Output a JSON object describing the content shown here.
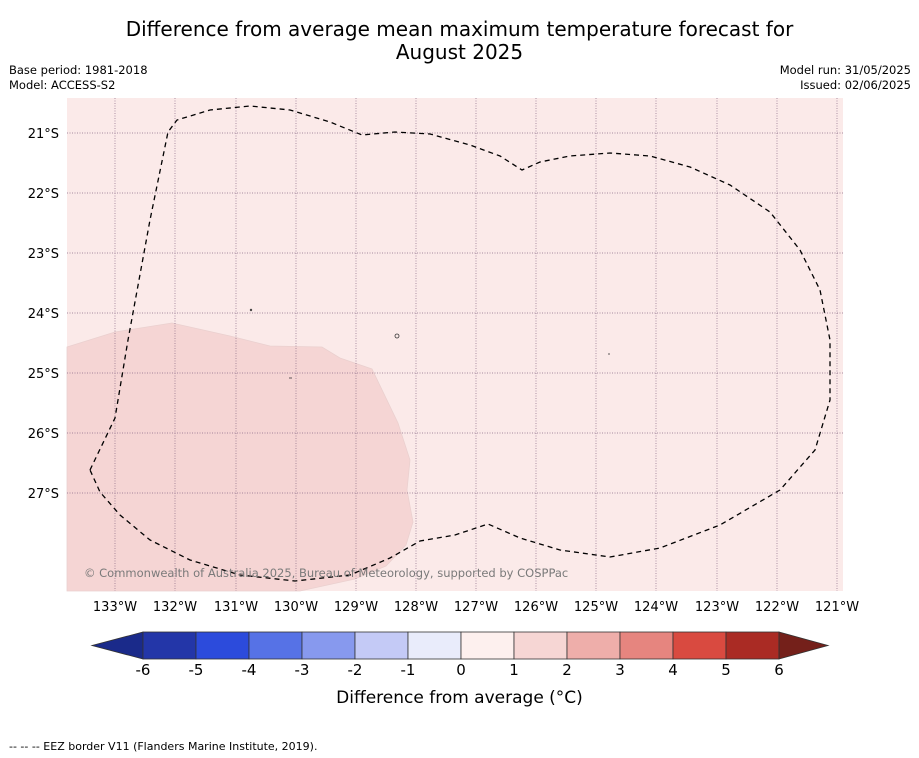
{
  "title": {
    "line1": "Difference from average mean maximum temperature forecast for",
    "line2": "August 2025"
  },
  "header": {
    "base_period": "Base period: 1981-2018",
    "model": "Model: ACCESS-S2",
    "model_run": "Model run: 31/05/2025",
    "issued": "Issued: 02/06/2025"
  },
  "map": {
    "lat_labels": [
      "21°S",
      "22°S",
      "23°S",
      "24°S",
      "25°S",
      "26°S",
      "27°S"
    ],
    "lon_labels": [
      "133°W",
      "132°W",
      "131°W",
      "130°W",
      "129°W",
      "128°W",
      "127°W",
      "126°W",
      "125°W",
      "124°W",
      "123°W",
      "122°W",
      "121°W"
    ],
    "copyright": "© Commonwealth of Australia 2025, Bureau of Meteorology, supported by COSPPac",
    "colors": {
      "background_anomaly": "#fbeae9",
      "warm_patch": "#f5d5d4",
      "eez_border": "#000000"
    }
  },
  "colorbar": {
    "ticks": [
      "-6",
      "-5",
      "-4",
      "-3",
      "-2",
      "-1",
      "0",
      "1",
      "2",
      "3",
      "4",
      "5",
      "6"
    ],
    "colors": [
      "#1a2a8a",
      "#2336a8",
      "#2c4bdc",
      "#5672e6",
      "#8799ee",
      "#c4caf6",
      "#e9ecfb",
      "#fdf0ee",
      "#f6d6d4",
      "#eeaeaa",
      "#e6857f",
      "#d94a40",
      "#aa2b24",
      "#74201a"
    ],
    "label": "Difference from average (°C)"
  },
  "footer": "--  --  -- EEZ border V11 (Flanders Marine Institute, 2019)."
}
